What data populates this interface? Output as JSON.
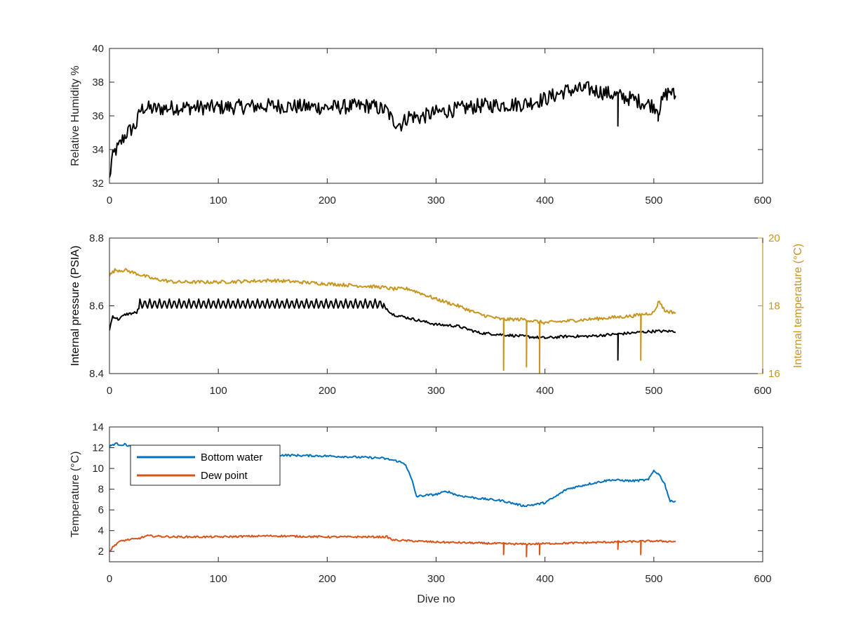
{
  "chart_data": [
    {
      "type": "line",
      "xlabel": "",
      "ylabel": "Relative Humidity %",
      "xlim": [
        0,
        600
      ],
      "ylim": [
        32,
        40
      ],
      "xticks": [
        0,
        100,
        200,
        300,
        400,
        500,
        600
      ],
      "yticks": [
        32,
        34,
        36,
        38,
        40
      ],
      "series": [
        {
          "color": "#000000",
          "noise": 0.45,
          "x": [
            0,
            2,
            5,
            8,
            12,
            16,
            20,
            25,
            28,
            32,
            40,
            60,
            100,
            150,
            200,
            240,
            255,
            260,
            268,
            275,
            285,
            300,
            340,
            380,
            400,
            420,
            440,
            460,
            480,
            500,
            505,
            510,
            515,
            520
          ],
          "y": [
            32.2,
            33.3,
            33.9,
            34.1,
            34.6,
            35.0,
            35.2,
            35.5,
            36.3,
            36.5,
            36.4,
            36.5,
            36.5,
            36.6,
            36.5,
            36.6,
            36.3,
            35.7,
            35.5,
            36.0,
            35.9,
            36.2,
            36.6,
            36.7,
            37.0,
            37.5,
            37.6,
            37.3,
            37.0,
            36.6,
            36.4,
            37.2,
            37.5,
            37.1
          ],
          "spikes": [
            [
              467,
              35.4
            ],
            [
              504,
              35.7
            ]
          ]
        }
      ]
    },
    {
      "type": "line",
      "xlabel": "",
      "ylabel": "Internal pressure (PSIA)",
      "y2label": "Internal temperature (°C)",
      "xlim": [
        0,
        600
      ],
      "ylim": [
        8.4,
        8.8
      ],
      "y2lim": [
        16,
        20
      ],
      "xticks": [
        0,
        100,
        200,
        300,
        400,
        500,
        600
      ],
      "yticks": [
        8.4,
        8.6,
        8.8
      ],
      "y2ticks": [
        16,
        18,
        20
      ],
      "y2color": "#c8961e",
      "series": [
        {
          "axis": "left",
          "color": "#000000",
          "noise": 0.004,
          "x": [
            0,
            3,
            8,
            15,
            25,
            28,
            60,
            100,
            150,
            200,
            240,
            252,
            260,
            280,
            300,
            320,
            340,
            360,
            380,
            400,
            420,
            440,
            460,
            480,
            500,
            520
          ],
          "y": [
            8.53,
            8.57,
            8.56,
            8.575,
            8.58,
            8.6,
            8.6,
            8.6,
            8.6,
            8.6,
            8.6,
            8.6,
            8.575,
            8.56,
            8.545,
            8.54,
            8.52,
            8.515,
            8.51,
            8.505,
            8.51,
            8.51,
            8.515,
            8.52,
            8.525,
            8.525
          ],
          "comb": {
            "from": 28,
            "to": 252,
            "period": 4.5,
            "depth": 0.03,
            "top": 8.62
          },
          "spikes": [
            [
              467,
              8.44
            ]
          ]
        },
        {
          "axis": "right",
          "color": "#c8961e",
          "noise": 0.05,
          "x": [
            0,
            5,
            15,
            25,
            40,
            60,
            100,
            150,
            200,
            250,
            260,
            275,
            300,
            320,
            340,
            360,
            380,
            400,
            420,
            440,
            460,
            480,
            490,
            500,
            505,
            510,
            520
          ],
          "y": [
            18.9,
            19.05,
            19.05,
            18.95,
            18.8,
            18.7,
            18.7,
            18.75,
            18.65,
            18.55,
            18.5,
            18.5,
            18.2,
            18.0,
            17.75,
            17.6,
            17.6,
            17.5,
            17.55,
            17.6,
            17.65,
            17.7,
            17.75,
            17.8,
            18.15,
            17.85,
            17.8
          ],
          "spikes": [
            [
              362,
              16.1
            ],
            [
              383,
              16.2
            ],
            [
              395,
              16.0
            ],
            [
              488,
              16.4
            ]
          ]
        }
      ]
    },
    {
      "type": "line",
      "xlabel": "Dive no",
      "ylabel": "Temperature (°C)",
      "xlim": [
        0,
        600
      ],
      "ylim": [
        1,
        14
      ],
      "xticks": [
        0,
        100,
        200,
        300,
        400,
        500,
        600
      ],
      "yticks": [
        2,
        4,
        6,
        8,
        10,
        12,
        14
      ],
      "legend": "top-left",
      "series": [
        {
          "name": "Bottom water",
          "color": "#0072bd",
          "noise": 0.1,
          "x": [
            0,
            5,
            10,
            15,
            20,
            30,
            50,
            100,
            150,
            200,
            250,
            265,
            272,
            278,
            282,
            290,
            300,
            310,
            320,
            340,
            360,
            380,
            390,
            400,
            410,
            420,
            440,
            460,
            480,
            495,
            500,
            505,
            510,
            515,
            520
          ],
          "y": [
            12.1,
            12.4,
            12.3,
            12.3,
            12.1,
            11.9,
            11.7,
            11.4,
            11.3,
            11.2,
            11.0,
            10.7,
            10.4,
            8.8,
            7.3,
            7.4,
            7.5,
            7.8,
            7.4,
            7.1,
            6.9,
            6.4,
            6.5,
            6.7,
            7.3,
            8.0,
            8.5,
            8.9,
            8.8,
            8.9,
            9.8,
            9.4,
            8.5,
            6.8,
            6.9
          ]
        },
        {
          "name": "Dew point",
          "color": "#d95319",
          "noise": 0.09,
          "x": [
            0,
            3,
            8,
            15,
            25,
            35,
            60,
            100,
            150,
            200,
            240,
            255,
            260,
            280,
            300,
            340,
            380,
            420,
            460,
            500,
            520
          ],
          "y": [
            2.0,
            2.4,
            2.9,
            3.1,
            3.2,
            3.5,
            3.4,
            3.4,
            3.5,
            3.4,
            3.4,
            3.4,
            3.1,
            3.0,
            2.9,
            2.8,
            2.7,
            2.8,
            2.9,
            3.0,
            2.95
          ],
          "spikes": [
            [
              362,
              1.7
            ],
            [
              383,
              1.5
            ],
            [
              395,
              1.7
            ],
            [
              467,
              2.2
            ],
            [
              488,
              1.7
            ]
          ]
        }
      ]
    }
  ]
}
